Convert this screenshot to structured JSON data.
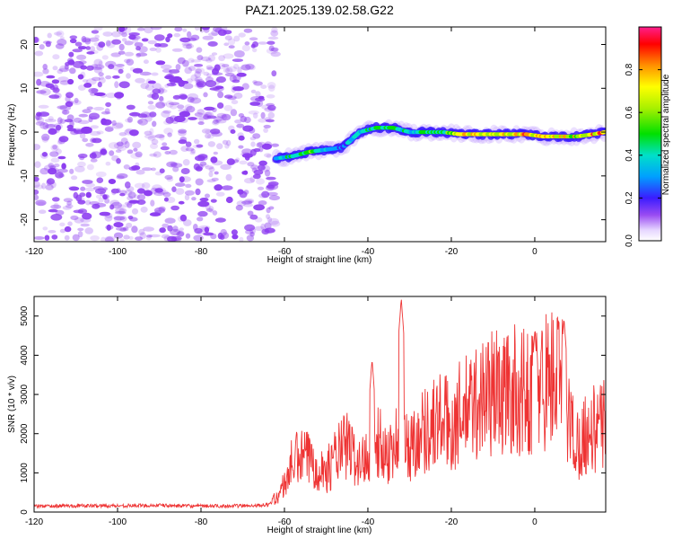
{
  "title": "PAZ1.2025.139.02.58.G22",
  "colors": {
    "snr_line": "#ee3333",
    "scatter_dots": "#8c3cf0",
    "axis": "#000000"
  },
  "chart_data": [
    {
      "type": "heatmap",
      "title": "PAZ1.2025.139.02.58.G22",
      "xlabel": "Height of straight line (km)",
      "ylabel": "Frequency (Hz)",
      "xlim": [
        -120,
        17
      ],
      "ylim": [
        -25,
        24
      ],
      "xticks": [
        -120,
        -100,
        -80,
        -60,
        -40,
        -20,
        0
      ],
      "yticks": [
        -20,
        -10,
        0,
        10,
        20
      ],
      "noise_region_x": [
        -120,
        -62
      ],
      "signal_ridge": {
        "x": [
          -62,
          -58,
          -54,
          -50,
          -46,
          -42,
          -38,
          -34,
          -30,
          -26,
          -22,
          -18,
          -14,
          -10,
          -6,
          -2,
          2,
          6,
          10,
          14,
          17
        ],
        "frequency": [
          -6,
          -5.5,
          -4.5,
          -4,
          -3.5,
          0,
          1,
          1,
          0,
          0,
          0,
          -0.5,
          -0.5,
          -0.5,
          -0.5,
          -0.5,
          -1,
          -1,
          -1,
          -0.5,
          0
        ],
        "amplitude": [
          0.3,
          0.5,
          0.6,
          0.35,
          0.3,
          0.45,
          0.5,
          0.55,
          0.4,
          0.55,
          0.5,
          0.8,
          0.8,
          0.7,
          0.85,
          0.9,
          0.85,
          0.8,
          0.75,
          0.85,
          0.95
        ]
      },
      "colorbar": {
        "label": "Normalized spectral amplitude",
        "range": [
          0.0,
          1.0
        ],
        "ticks": [
          "0.0",
          "0.2",
          "0.4",
          "0.6",
          "0.8"
        ]
      }
    },
    {
      "type": "line",
      "xlabel": "Height of straight line (km)",
      "ylabel": "SNR (10 * v/v)",
      "xlim": [
        -120,
        17
      ],
      "ylim": [
        0,
        5500
      ],
      "xticks": [
        -120,
        -100,
        -80,
        -60,
        -40,
        -20,
        0
      ],
      "yticks": [
        0,
        1000,
        2000,
        3000,
        4000,
        5000
      ],
      "series": [
        {
          "name": "SNR",
          "x": [
            -120,
            -110,
            -100,
            -90,
            -80,
            -70,
            -64,
            -62,
            -60,
            -58,
            -55,
            -52,
            -50,
            -48,
            -45,
            -42,
            -40,
            -38,
            -35,
            -32,
            -30,
            -28,
            -25,
            -22,
            -20,
            -18,
            -15,
            -12,
            -10,
            -8,
            -5,
            -3,
            0,
            3,
            5,
            7,
            8,
            10,
            12,
            14,
            17
          ],
          "y": [
            150,
            160,
            160,
            170,
            150,
            160,
            180,
            350,
            700,
            1300,
            1400,
            1200,
            1000,
            1400,
            1700,
            1200,
            1500,
            1800,
            1500,
            2000,
            1600,
            2000,
            2200,
            2400,
            2100,
            2500,
            2700,
            3000,
            3100,
            3000,
            3100,
            3000,
            3200,
            3400,
            3500,
            3200,
            2500,
            1700,
            2000,
            2100,
            2200
          ],
          "peaks": [
            {
              "x": -32,
              "y": 5450
            },
            {
              "x": 7,
              "y": 4950
            },
            {
              "x": 0,
              "y": 4600
            },
            {
              "x": -39,
              "y": 3900
            }
          ]
        }
      ]
    }
  ]
}
